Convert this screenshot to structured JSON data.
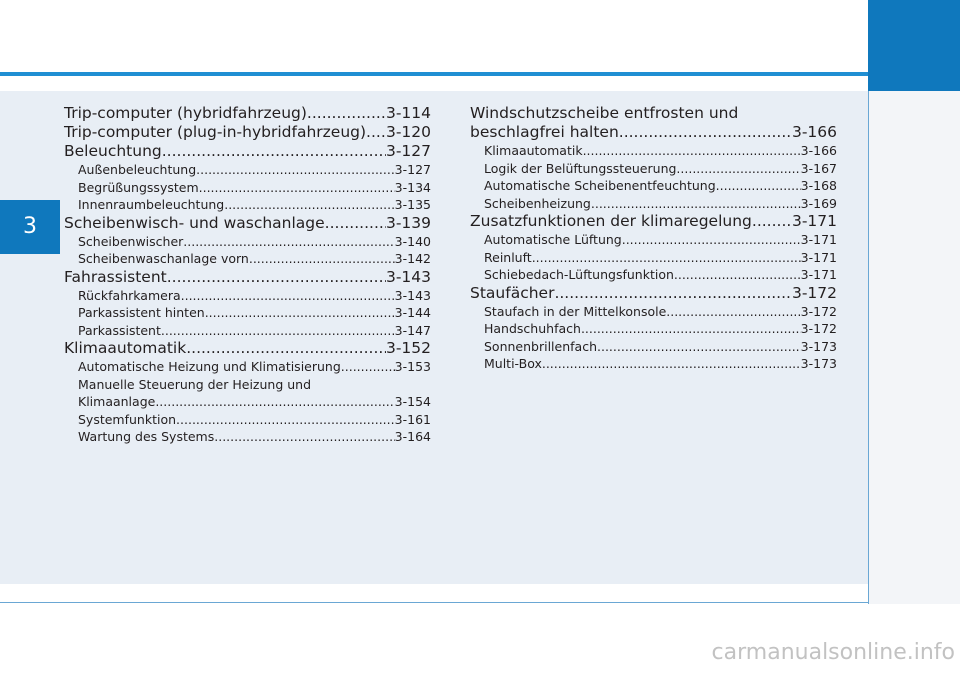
{
  "chapter_number": "3",
  "left_column": [
    {
      "level": "main",
      "title": "Trip-computer (hybridfahrzeug)",
      "page": "3-114"
    },
    {
      "level": "main",
      "title": "Trip-computer (plug-in-hybridfahrzeug)",
      "page": "3-120"
    },
    {
      "level": "main",
      "title": "Beleuchtung",
      "page": "3-127"
    },
    {
      "level": "sub",
      "title": "Außenbeleuchtung",
      "page": "3-127"
    },
    {
      "level": "sub",
      "title": "Begrüßungssystem",
      "page": "3-134"
    },
    {
      "level": "sub",
      "title": "Innenraumbeleuchtung",
      "page": "3-135"
    },
    {
      "level": "main",
      "title": "Scheibenwisch- und waschanlage",
      "page": "3-139"
    },
    {
      "level": "sub",
      "title": "Scheibenwischer",
      "page": "3-140"
    },
    {
      "level": "sub",
      "title": "Scheibenwaschanlage vorn",
      "page": "3-142"
    },
    {
      "level": "main",
      "title": "Fahrassistent",
      "page": "3-143"
    },
    {
      "level": "sub",
      "title": "Rückfahrkamera",
      "page": "3-143"
    },
    {
      "level": "sub",
      "title": "Parkassistent hinten",
      "page": "3-144"
    },
    {
      "level": "sub",
      "title": "Parkassistent",
      "page": "3-147"
    },
    {
      "level": "main",
      "title": "Klimaautomatik",
      "page": "3-152"
    },
    {
      "level": "sub",
      "title": "Automatische Heizung und Klimatisierung",
      "page": "3-153"
    },
    {
      "level": "sub",
      "title": "Manuelle Steuerung der Heizung und",
      "page": ""
    },
    {
      "level": "sub",
      "title": "Klimaanlage",
      "page": "3-154"
    },
    {
      "level": "sub",
      "title": "Systemfunktion",
      "page": "3-161"
    },
    {
      "level": "sub",
      "title": "Wartung des Systems",
      "page": "3-164"
    }
  ],
  "right_column": [
    {
      "level": "main",
      "title": "Windschutzscheibe entfrosten und",
      "page": ""
    },
    {
      "level": "main",
      "title": "beschlagfrei halten",
      "page": "3-166"
    },
    {
      "level": "sub",
      "title": "Klimaautomatik",
      "page": "3-166"
    },
    {
      "level": "sub",
      "title": "Logik der Belüftungssteuerung",
      "page": "3-167"
    },
    {
      "level": "sub",
      "title": "Automatische Scheibenentfeuchtung",
      "page": "3-168"
    },
    {
      "level": "sub",
      "title": "Scheibenheizung",
      "page": "3-169"
    },
    {
      "level": "main",
      "title": "Zusatzfunktionen der klimaregelung",
      "page": "3-171"
    },
    {
      "level": "sub",
      "title": "Automatische Lüftung",
      "page": "3-171"
    },
    {
      "level": "sub",
      "title": "Reinluft",
      "page": "3-171"
    },
    {
      "level": "sub",
      "title": "Schiebedach-Lüftungsfunktion",
      "page": "3-171"
    },
    {
      "level": "main",
      "title": "Staufächer",
      "page": "3-172"
    },
    {
      "level": "sub",
      "title": "Staufach in der Mittelkonsole",
      "page": "3-172"
    },
    {
      "level": "sub",
      "title": "Handschuhfach",
      "page": "3-172"
    },
    {
      "level": "sub",
      "title": "Sonnenbrillenfach",
      "page": "3-173"
    },
    {
      "level": "sub",
      "title": "Multi-Box",
      "page": "3-173"
    }
  ],
  "watermark": "carmanualsonline.info",
  "colors": {
    "accent": "#0f78bd",
    "rule": "#1f8fd3",
    "panel": "#e8eef5",
    "text": "#231f20"
  }
}
